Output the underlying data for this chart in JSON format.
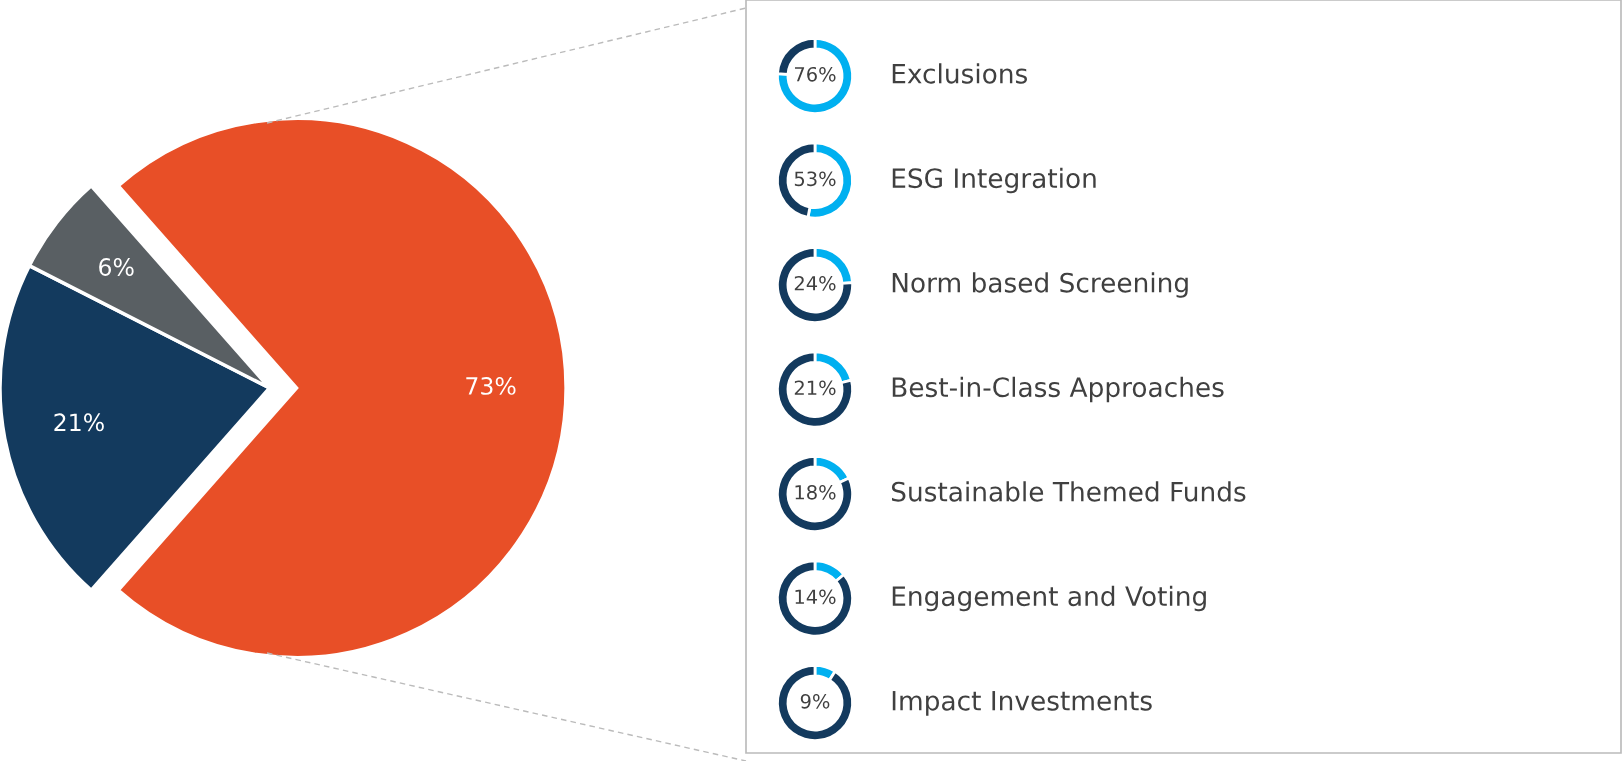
{
  "chart_data": [
    {
      "type": "pie",
      "categories": [
        null,
        null,
        null
      ],
      "values": [
        73,
        21,
        6
      ],
      "value_labels": [
        "73%",
        "21%",
        "6%"
      ],
      "colors": [
        "#e84f27",
        "#133a5e",
        "#595f63"
      ]
    },
    {
      "type": "donut",
      "title": "Exclusions",
      "categories": [
        null,
        null
      ],
      "values": [
        76,
        24
      ],
      "value_labels": [
        "76%",
        null
      ],
      "colors": [
        "#00b0f0",
        "#133a5e"
      ]
    },
    {
      "type": "donut",
      "title": "ESG Integration",
      "categories": [
        null,
        null
      ],
      "values": [
        53,
        47
      ],
      "value_labels": [
        "53%",
        null
      ],
      "colors": [
        "#00b0f0",
        "#133a5e"
      ]
    },
    {
      "type": "donut",
      "title": "Norm based Screening",
      "categories": [
        null,
        null
      ],
      "values": [
        24,
        76
      ],
      "value_labels": [
        "24%",
        null
      ],
      "colors": [
        "#00b0f0",
        "#133a5e"
      ]
    },
    {
      "type": "donut",
      "title": "Best-in-Class Approaches",
      "categories": [
        null,
        null
      ],
      "values": [
        21,
        79
      ],
      "value_labels": [
        "21%",
        null
      ],
      "colors": [
        "#00b0f0",
        "#133a5e"
      ]
    },
    {
      "type": "donut",
      "title": "Sustainable Themed Funds",
      "categories": [
        null,
        null
      ],
      "values": [
        18,
        82
      ],
      "value_labels": [
        "18%",
        null
      ],
      "colors": [
        "#00b0f0",
        "#133a5e"
      ]
    },
    {
      "type": "donut",
      "title": "Engagement and Voting",
      "categories": [
        null,
        null
      ],
      "values": [
        14,
        86
      ],
      "value_labels": [
        "14%",
        null
      ],
      "colors": [
        "#00b0f0",
        "#133a5e"
      ]
    },
    {
      "type": "donut",
      "title": "Impact Investments",
      "categories": [
        null,
        null
      ],
      "values": [
        9,
        91
      ],
      "value_labels": [
        "9%",
        null
      ],
      "colors": [
        "#00b0f0",
        "#133a5e"
      ]
    }
  ]
}
